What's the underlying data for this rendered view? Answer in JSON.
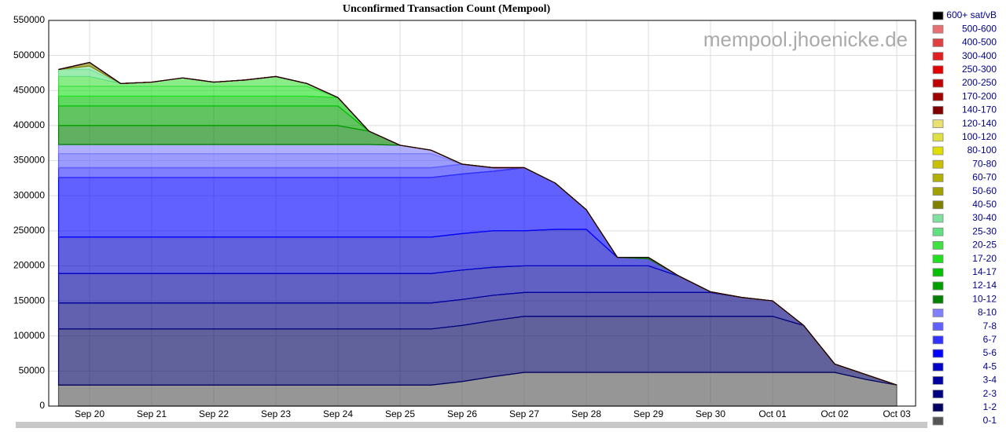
{
  "chart_data": {
    "type": "area",
    "stacked": true,
    "title": "Unconfirmed Transaction Count (Mempool)",
    "watermark": "mempool.jhoenicke.de",
    "categories": [
      null,
      "Sep 20",
      null,
      "Sep 21",
      null,
      "Sep 22",
      null,
      "Sep 23",
      null,
      "Sep 24",
      null,
      "Sep 25",
      null,
      "Sep 26",
      null,
      "Sep 27",
      null,
      "Sep 28",
      null,
      "Sep 29",
      null,
      "Sep 30",
      null,
      "Oct 01",
      null,
      "Oct 02",
      null,
      "Oct 03"
    ],
    "ylim": [
      0,
      550000
    ],
    "yticks": [
      0,
      50000,
      100000,
      150000,
      200000,
      250000,
      300000,
      350000,
      400000,
      450000,
      500000,
      550000
    ],
    "grid": true,
    "legend": "right",
    "series": [
      {
        "name": "0-1",
        "color": "#555555",
        "values": [
          30000,
          30000,
          30000,
          30000,
          30000,
          30000,
          30000,
          30000,
          30000,
          30000,
          30000,
          30000,
          30000,
          35000,
          42000,
          48000,
          48000,
          48000,
          48000,
          48000,
          48000,
          48000,
          48000,
          48000,
          48000,
          48000,
          38000,
          30000
        ]
      },
      {
        "name": "1-2",
        "color": "#000060",
        "values": [
          80000,
          80000,
          80000,
          80000,
          80000,
          80000,
          80000,
          80000,
          80000,
          80000,
          80000,
          80000,
          80000,
          80000,
          80000,
          80000,
          80000,
          80000,
          80000,
          80000,
          80000,
          80000,
          80000,
          80000,
          67000,
          12000,
          7000,
          0
        ]
      },
      {
        "name": "2-3",
        "color": "#000080",
        "values": [
          37000,
          37000,
          37000,
          37000,
          37000,
          37000,
          37000,
          37000,
          37000,
          37000,
          37000,
          37000,
          37000,
          37000,
          36000,
          34000,
          34000,
          34000,
          34000,
          34000,
          34000,
          34000,
          27000,
          22000,
          0,
          0,
          0,
          0
        ]
      },
      {
        "name": "3-4",
        "color": "#0000a0",
        "values": [
          42000,
          42000,
          42000,
          42000,
          42000,
          42000,
          42000,
          42000,
          42000,
          42000,
          42000,
          42000,
          42000,
          42000,
          40000,
          38000,
          38000,
          38000,
          38000,
          38000,
          23000,
          1000,
          0,
          0,
          0,
          0,
          0,
          0
        ]
      },
      {
        "name": "4-5",
        "color": "#0000c8",
        "values": [
          52000,
          52000,
          52000,
          52000,
          52000,
          52000,
          52000,
          52000,
          52000,
          52000,
          52000,
          52000,
          52000,
          52000,
          52000,
          50000,
          52000,
          52000,
          12000,
          10000,
          0,
          0,
          0,
          0,
          0,
          0,
          0,
          0
        ]
      },
      {
        "name": "5-6",
        "color": "#0000ff",
        "values": [
          85000,
          85000,
          85000,
          85000,
          85000,
          85000,
          85000,
          85000,
          85000,
          85000,
          85000,
          85000,
          85000,
          85000,
          85000,
          90000,
          66000,
          28000,
          0,
          0,
          0,
          0,
          0,
          0,
          0,
          0,
          0,
          0
        ]
      },
      {
        "name": "6-7",
        "color": "#3030ff",
        "values": [
          14000,
          14000,
          14000,
          14000,
          14000,
          14000,
          14000,
          14000,
          14000,
          14000,
          14000,
          14000,
          14000,
          14000,
          5000,
          0,
          0,
          0,
          0,
          0,
          0,
          0,
          0,
          0,
          0,
          0,
          0,
          0
        ]
      },
      {
        "name": "7-8",
        "color": "#6060ff",
        "values": [
          20000,
          20000,
          20000,
          20000,
          20000,
          20000,
          20000,
          20000,
          20000,
          20000,
          20000,
          20000,
          20000,
          0,
          0,
          0,
          0,
          0,
          0,
          0,
          0,
          0,
          0,
          0,
          0,
          0,
          0,
          0
        ]
      },
      {
        "name": "8-10",
        "color": "#8080ff",
        "values": [
          13000,
          13000,
          13000,
          13000,
          13000,
          13000,
          13000,
          13000,
          13000,
          13000,
          13000,
          12000,
          5000,
          0,
          0,
          0,
          0,
          0,
          0,
          0,
          0,
          0,
          0,
          0,
          0,
          0,
          0,
          0
        ]
      },
      {
        "name": "10-12",
        "color": "#008000",
        "values": [
          27000,
          27000,
          27000,
          27000,
          27000,
          27000,
          27000,
          27000,
          27000,
          27000,
          19000,
          0,
          0,
          0,
          0,
          0,
          0,
          0,
          0,
          2000,
          0,
          0,
          0,
          0,
          0,
          0,
          0,
          0
        ]
      },
      {
        "name": "12-14",
        "color": "#00a000",
        "values": [
          28000,
          28000,
          28000,
          28000,
          28000,
          28000,
          28000,
          28000,
          28000,
          28000,
          0,
          0,
          0,
          0,
          0,
          0,
          0,
          0,
          0,
          0,
          0,
          0,
          0,
          0,
          0,
          0,
          0,
          0
        ]
      },
      {
        "name": "14-17",
        "color": "#00c000",
        "values": [
          14000,
          14000,
          14000,
          14000,
          14000,
          14000,
          14000,
          14000,
          14000,
          12000,
          0,
          0,
          0,
          0,
          0,
          0,
          0,
          0,
          0,
          0,
          0,
          0,
          0,
          0,
          0,
          0,
          0,
          0
        ]
      },
      {
        "name": "17-20",
        "color": "#20e020",
        "values": [
          14000,
          14000,
          14000,
          14000,
          14000,
          14000,
          14000,
          14000,
          14000,
          0,
          0,
          0,
          0,
          0,
          0,
          0,
          0,
          0,
          0,
          0,
          0,
          0,
          0,
          0,
          0,
          0,
          0,
          0
        ]
      },
      {
        "name": "20-25",
        "color": "#40e040",
        "values": [
          14000,
          14000,
          4000,
          6000,
          12000,
          6000,
          9000,
          14000,
          4000,
          0,
          0,
          0,
          0,
          0,
          0,
          0,
          0,
          0,
          0,
          0,
          0,
          0,
          0,
          0,
          0,
          0,
          0,
          0
        ]
      },
      {
        "name": "25-30",
        "color": "#60e080",
        "values": [
          10000,
          10000,
          0,
          0,
          0,
          0,
          0,
          0,
          0,
          0,
          0,
          0,
          0,
          0,
          0,
          0,
          0,
          0,
          0,
          0,
          0,
          0,
          0,
          0,
          0,
          0,
          0,
          0
        ]
      },
      {
        "name": "30-40",
        "color": "#80e0a0",
        "values": [
          0,
          5000,
          0,
          0,
          0,
          0,
          0,
          0,
          0,
          0,
          0,
          0,
          0,
          0,
          0,
          0,
          0,
          0,
          0,
          0,
          0,
          0,
          0,
          0,
          0,
          0,
          0,
          0
        ]
      },
      {
        "name": "40-50",
        "color": "#808000",
        "values": [
          0,
          5000,
          0,
          0,
          0,
          0,
          0,
          0,
          0,
          0,
          0,
          0,
          0,
          0,
          0,
          0,
          0,
          0,
          0,
          0,
          0,
          0,
          0,
          0,
          0,
          0,
          0,
          0
        ]
      },
      {
        "name": "50-60",
        "color": "#a0a000",
        "values": [
          0,
          0,
          0,
          0,
          0,
          0,
          0,
          0,
          0,
          0,
          0,
          0,
          0,
          0,
          0,
          0,
          0,
          0,
          0,
          0,
          0,
          0,
          0,
          0,
          0,
          0,
          0,
          0
        ]
      },
      {
        "name": "60-70",
        "color": "#b0b000",
        "values": [
          0,
          0,
          0,
          0,
          0,
          0,
          0,
          0,
          0,
          0,
          0,
          0,
          0,
          0,
          0,
          0,
          0,
          0,
          0,
          0,
          0,
          0,
          0,
          0,
          0,
          0,
          0,
          0
        ]
      },
      {
        "name": "70-80",
        "color": "#c8c000",
        "values": [
          0,
          0,
          0,
          0,
          0,
          0,
          0,
          0,
          0,
          0,
          0,
          0,
          0,
          0,
          0,
          0,
          0,
          0,
          0,
          0,
          0,
          0,
          0,
          0,
          0,
          0,
          0,
          0
        ]
      },
      {
        "name": "80-100",
        "color": "#e0e000",
        "values": [
          0,
          0,
          0,
          0,
          0,
          0,
          0,
          0,
          0,
          0,
          0,
          0,
          0,
          0,
          0,
          0,
          0,
          0,
          0,
          0,
          0,
          0,
          0,
          0,
          0,
          0,
          0,
          0
        ]
      },
      {
        "name": "100-120",
        "color": "#e0e040",
        "values": [
          0,
          0,
          0,
          0,
          0,
          0,
          0,
          0,
          0,
          0,
          0,
          0,
          0,
          0,
          0,
          0,
          0,
          0,
          0,
          0,
          0,
          0,
          0,
          0,
          0,
          0,
          0,
          0
        ]
      },
      {
        "name": "120-140",
        "color": "#e8e070",
        "values": [
          0,
          0,
          0,
          0,
          0,
          0,
          0,
          0,
          0,
          0,
          0,
          0,
          0,
          0,
          0,
          0,
          0,
          0,
          0,
          0,
          0,
          0,
          0,
          0,
          0,
          0,
          0,
          0
        ]
      },
      {
        "name": "140-170",
        "color": "#800000",
        "values": [
          0,
          0,
          0,
          0,
          0,
          0,
          0,
          0,
          0,
          0,
          0,
          0,
          0,
          0,
          0,
          0,
          0,
          0,
          0,
          0,
          0,
          0,
          0,
          0,
          0,
          0,
          0,
          0
        ]
      },
      {
        "name": "170-200",
        "color": "#a00000",
        "values": [
          0,
          0,
          0,
          0,
          0,
          0,
          0,
          0,
          0,
          0,
          0,
          0,
          0,
          0,
          0,
          0,
          0,
          0,
          0,
          0,
          0,
          0,
          0,
          0,
          0,
          0,
          0,
          0
        ]
      },
      {
        "name": "200-250",
        "color": "#c00000",
        "values": [
          0,
          0,
          0,
          0,
          0,
          0,
          0,
          0,
          0,
          0,
          0,
          0,
          0,
          0,
          0,
          0,
          0,
          0,
          0,
          0,
          0,
          0,
          0,
          0,
          0,
          0,
          0,
          0
        ]
      },
      {
        "name": "250-300",
        "color": "#e00000",
        "values": [
          0,
          0,
          0,
          0,
          0,
          0,
          0,
          0,
          0,
          0,
          0,
          0,
          0,
          0,
          0,
          0,
          0,
          0,
          0,
          0,
          0,
          0,
          0,
          0,
          0,
          0,
          0,
          0
        ]
      },
      {
        "name": "300-400",
        "color": "#e02020",
        "values": [
          0,
          0,
          0,
          0,
          0,
          0,
          0,
          0,
          0,
          0,
          0,
          0,
          0,
          0,
          0,
          0,
          0,
          0,
          0,
          0,
          0,
          0,
          0,
          0,
          0,
          0,
          0,
          0
        ]
      },
      {
        "name": "400-500",
        "color": "#e04040",
        "values": [
          0,
          0,
          0,
          0,
          0,
          0,
          0,
          0,
          0,
          0,
          0,
          0,
          0,
          0,
          0,
          0,
          0,
          0,
          0,
          0,
          0,
          0,
          0,
          0,
          0,
          0,
          0,
          0
        ]
      },
      {
        "name": "500-600",
        "color": "#e87070",
        "values": [
          0,
          0,
          0,
          0,
          0,
          0,
          0,
          0,
          0,
          0,
          0,
          0,
          0,
          0,
          0,
          0,
          0,
          0,
          0,
          0,
          0,
          0,
          0,
          0,
          0,
          0,
          0,
          0
        ]
      },
      {
        "name": "600+ sat/vB",
        "color": "#000000",
        "values": [
          0,
          0,
          0,
          0,
          0,
          0,
          0,
          0,
          0,
          0,
          0,
          0,
          0,
          0,
          0,
          0,
          0,
          0,
          0,
          0,
          0,
          0,
          0,
          0,
          0,
          0,
          0,
          0
        ]
      }
    ]
  }
}
